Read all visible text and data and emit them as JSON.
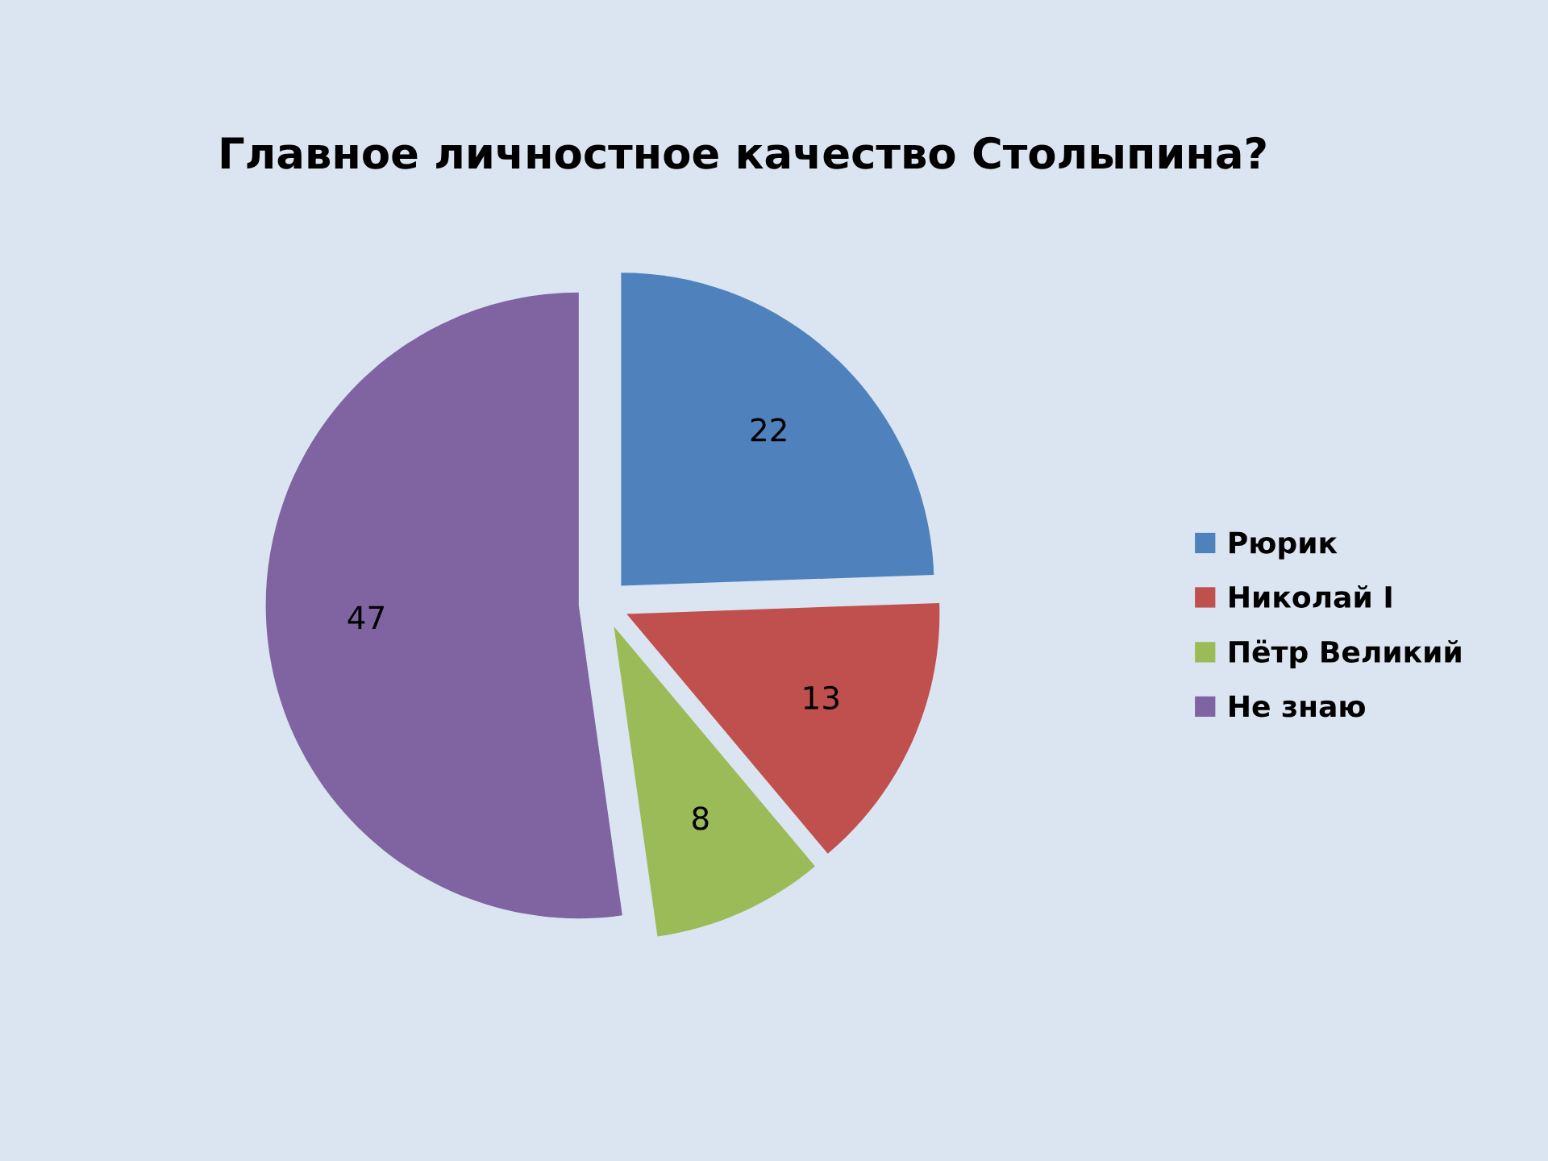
{
  "chart_data": {
    "type": "pie",
    "title": "Главное личностное качество Столыпина?",
    "categories": [
      "Рюрик",
      "Николай I",
      "Пётр Великий",
      "Не знаю"
    ],
    "values": [
      22,
      13,
      8,
      47
    ],
    "colors": [
      "#4f81bd",
      "#c0504d",
      "#9bbb59",
      "#8064a2"
    ],
    "data_labels": true,
    "legend": "right"
  }
}
